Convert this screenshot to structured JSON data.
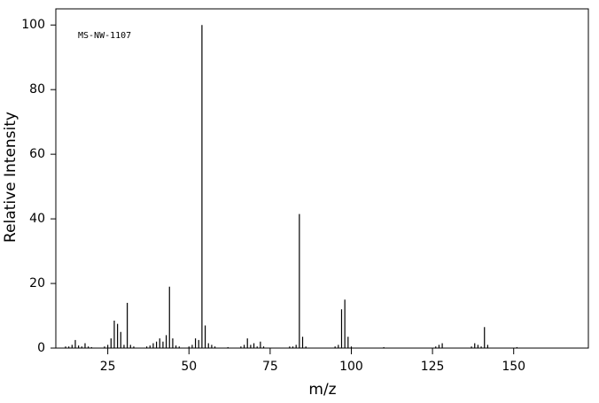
{
  "chart_data": {
    "type": "bar",
    "annotation": "MS-NW-1107",
    "xlabel": "m/z",
    "ylabel": "Relative Intensity",
    "x": [
      12,
      13,
      14,
      15,
      16,
      17,
      18,
      19,
      20,
      24,
      25,
      26,
      27,
      28,
      29,
      30,
      31,
      32,
      33,
      37,
      38,
      39,
      40,
      41,
      42,
      43,
      44,
      45,
      46,
      47,
      50,
      51,
      52,
      53,
      54,
      55,
      56,
      57,
      58,
      62,
      66,
      67,
      68,
      69,
      70,
      71,
      72,
      73,
      81,
      82,
      83,
      84,
      85,
      86,
      95,
      96,
      97,
      98,
      99,
      100,
      110,
      126,
      127,
      128,
      137,
      138,
      139,
      140,
      141,
      142,
      151
    ],
    "values": [
      0.5,
      0.5,
      1,
      2.5,
      0.8,
      0.5,
      1.5,
      0.5,
      0.3,
      0.5,
      1,
      3,
      8.5,
      7.5,
      5,
      1,
      14,
      1,
      0.5,
      0.5,
      0.8,
      1.5,
      2,
      3,
      2,
      4,
      19,
      3,
      0.8,
      0.5,
      0.5,
      1,
      3,
      2.5,
      100,
      7,
      1.5,
      1,
      0.5,
      0.3,
      0.5,
      1,
      3,
      1,
      1.5,
      0.5,
      2,
      0.5,
      0.5,
      0.5,
      1,
      41.5,
      3.5,
      0.5,
      0.5,
      1,
      12,
      15,
      3.5,
      0.5,
      0.3,
      0.5,
      1,
      1.5,
      0.5,
      1.5,
      1,
      0.5,
      6.5,
      1,
      0.3
    ],
    "color": "#000000",
    "xlim": [
      9,
      173
    ],
    "xticks": [
      25,
      50,
      75,
      100,
      125,
      150
    ],
    "ylim": [
      0,
      105
    ],
    "yticks": [
      0,
      20,
      40,
      60,
      80,
      100
    ]
  }
}
